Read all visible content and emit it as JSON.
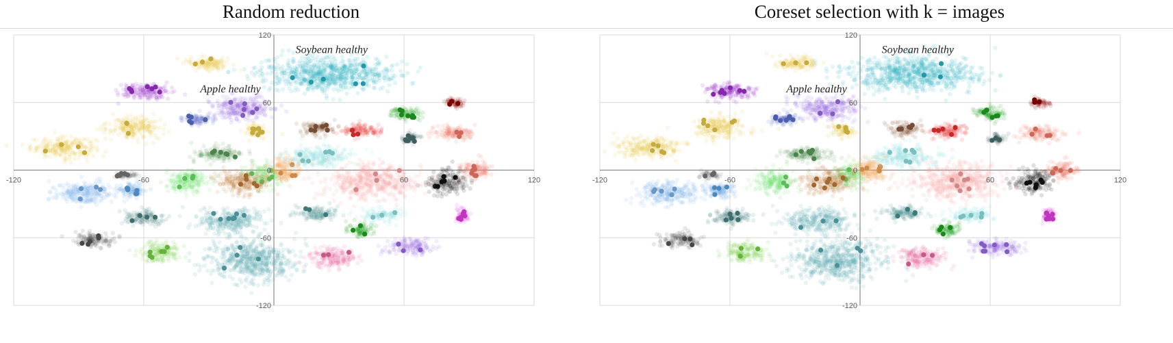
{
  "chart_data": [
    {
      "type": "scatter",
      "title": "Random reduction",
      "xlim": [
        -120,
        120
      ],
      "ylim": [
        -120,
        120
      ],
      "grid": true,
      "axes_through_origin": true,
      "x_ticks": [
        -120,
        -60,
        0,
        60,
        120
      ],
      "y_ticks": [
        -120,
        -60,
        0,
        60,
        120
      ],
      "annotations": [
        {
          "text": "Soybean healthy",
          "x": 10,
          "y": 104
        },
        {
          "text": "Apple healthy",
          "x": -34,
          "y": 69
        }
      ],
      "clusters": [
        {
          "color": "#e8c84a",
          "cx": -97,
          "cy": 20,
          "rx": 15,
          "ry": 9
        },
        {
          "color": "#e8c84a",
          "cx": -65,
          "cy": 38,
          "rx": 12,
          "ry": 10
        },
        {
          "color": "#e8c84a",
          "cx": -30,
          "cy": 95,
          "rx": 10,
          "ry": 6
        },
        {
          "color": "#e8c84a",
          "cx": -8,
          "cy": 35,
          "rx": 5,
          "ry": 6
        },
        {
          "color": "#9b30c9",
          "cx": -60,
          "cy": 70,
          "rx": 12,
          "ry": 7
        },
        {
          "color": "#9b6be0",
          "cx": -15,
          "cy": 55,
          "rx": 15,
          "ry": 10
        },
        {
          "color": "#5b6ec8",
          "cx": -35,
          "cy": 45,
          "rx": 7,
          "ry": 5
        },
        {
          "color": "#2bb3c4",
          "cx": 25,
          "cy": 85,
          "rx": 30,
          "ry": 15
        },
        {
          "color": "#5a9a5a",
          "cx": -25,
          "cy": 14,
          "rx": 12,
          "ry": 6
        },
        {
          "color": "#7fb0e8",
          "cx": -88,
          "cy": -20,
          "rx": 14,
          "ry": 10
        },
        {
          "color": "#5ea0e0",
          "cx": -65,
          "cy": -18,
          "rx": 6,
          "ry": 6
        },
        {
          "color": "#777777",
          "cx": -69,
          "cy": -4,
          "rx": 5,
          "ry": 3
        },
        {
          "color": "#6be06b",
          "cx": -40,
          "cy": -10,
          "rx": 10,
          "ry": 10
        },
        {
          "color": "#6be06b",
          "cx": -5,
          "cy": -5,
          "rx": 8,
          "ry": 10
        },
        {
          "color": "#c07a3a",
          "cx": -15,
          "cy": -10,
          "rx": 12,
          "ry": 10
        },
        {
          "color": "#f5a255",
          "cx": 5,
          "cy": 0,
          "rx": 8,
          "ry": 10
        },
        {
          "color": "#4a8080",
          "cx": -60,
          "cy": -42,
          "rx": 10,
          "ry": 6
        },
        {
          "color": "#555555",
          "cx": -83,
          "cy": -62,
          "rx": 9,
          "ry": 7
        },
        {
          "color": "#7ad04a",
          "cx": -53,
          "cy": -73,
          "rx": 9,
          "ry": 9
        },
        {
          "color": "#5aa8b0",
          "cx": -20,
          "cy": -45,
          "rx": 15,
          "ry": 11
        },
        {
          "color": "#5aa8b0",
          "cx": -10,
          "cy": -80,
          "rx": 20,
          "ry": 18
        },
        {
          "color": "#8a5a40",
          "cx": 20,
          "cy": 37,
          "rx": 8,
          "ry": 6
        },
        {
          "color": "#e83030",
          "cx": 40,
          "cy": 35,
          "rx": 9,
          "ry": 6
        },
        {
          "color": "#1fa01f",
          "cx": 60,
          "cy": 50,
          "rx": 7,
          "ry": 6
        },
        {
          "color": "#8b0000",
          "cx": 83,
          "cy": 60,
          "rx": 4,
          "ry": 4
        },
        {
          "color": "#f07a6a",
          "cx": 83,
          "cy": 33,
          "rx": 10,
          "ry": 6
        },
        {
          "color": "#4a7070",
          "cx": 63,
          "cy": 28,
          "rx": 4,
          "ry": 4
        },
        {
          "color": "#111111",
          "cx": 80,
          "cy": -10,
          "rx": 9,
          "ry": 10
        },
        {
          "color": "#f07a6a",
          "cx": 93,
          "cy": 0,
          "rx": 7,
          "ry": 8
        },
        {
          "color": "#90e0e0",
          "cx": 20,
          "cy": 12,
          "rx": 15,
          "ry": 10
        },
        {
          "color": "#f5a0a0",
          "cx": 45,
          "cy": -10,
          "rx": 20,
          "ry": 15
        },
        {
          "color": "#4a9090",
          "cx": 20,
          "cy": -38,
          "rx": 10,
          "ry": 6
        },
        {
          "color": "#1fa01f",
          "cx": 40,
          "cy": -53,
          "rx": 6,
          "ry": 6
        },
        {
          "color": "#e86aa0",
          "cx": 28,
          "cy": -78,
          "rx": 11,
          "ry": 9
        },
        {
          "color": "#9b6be0",
          "cx": 63,
          "cy": -68,
          "rx": 11,
          "ry": 7
        },
        {
          "color": "#e040e0",
          "cx": 87,
          "cy": -40,
          "rx": 3,
          "ry": 6
        },
        {
          "color": "#90e0e0",
          "cx": 50,
          "cy": -40,
          "rx": 10,
          "ry": 6
        }
      ]
    },
    {
      "type": "scatter",
      "title": "Coreset selection with k = images",
      "xlim": [
        -120,
        120
      ],
      "ylim": [
        -120,
        120
      ],
      "grid": true,
      "axes_through_origin": true,
      "x_ticks": [
        -120,
        -60,
        0,
        60,
        120
      ],
      "y_ticks": [
        -120,
        -60,
        0,
        60,
        120
      ],
      "annotations": [
        {
          "text": "Soybean healthy",
          "x": 10,
          "y": 104
        },
        {
          "text": "Apple healthy",
          "x": -34,
          "y": 69
        }
      ],
      "clusters": [
        {
          "color": "#e8c84a",
          "cx": -97,
          "cy": 20,
          "rx": 15,
          "ry": 9
        },
        {
          "color": "#e8c84a",
          "cx": -65,
          "cy": 38,
          "rx": 12,
          "ry": 10
        },
        {
          "color": "#e8c84a",
          "cx": -30,
          "cy": 95,
          "rx": 10,
          "ry": 6
        },
        {
          "color": "#e8c84a",
          "cx": -8,
          "cy": 35,
          "rx": 5,
          "ry": 6
        },
        {
          "color": "#9b30c9",
          "cx": -60,
          "cy": 70,
          "rx": 12,
          "ry": 7
        },
        {
          "color": "#9b6be0",
          "cx": -15,
          "cy": 55,
          "rx": 15,
          "ry": 10
        },
        {
          "color": "#5b6ec8",
          "cx": -35,
          "cy": 45,
          "rx": 7,
          "ry": 5
        },
        {
          "color": "#2bb3c4",
          "cx": 25,
          "cy": 85,
          "rx": 30,
          "ry": 15
        },
        {
          "color": "#5a9a5a",
          "cx": -25,
          "cy": 14,
          "rx": 12,
          "ry": 6
        },
        {
          "color": "#7fb0e8",
          "cx": -88,
          "cy": -20,
          "rx": 14,
          "ry": 10
        },
        {
          "color": "#5ea0e0",
          "cx": -65,
          "cy": -18,
          "rx": 6,
          "ry": 6
        },
        {
          "color": "#777777",
          "cx": -69,
          "cy": -4,
          "rx": 5,
          "ry": 3
        },
        {
          "color": "#6be06b",
          "cx": -40,
          "cy": -10,
          "rx": 10,
          "ry": 10
        },
        {
          "color": "#6be06b",
          "cx": -5,
          "cy": -5,
          "rx": 8,
          "ry": 10
        },
        {
          "color": "#c07a3a",
          "cx": -15,
          "cy": -10,
          "rx": 12,
          "ry": 10
        },
        {
          "color": "#f5a255",
          "cx": 5,
          "cy": 0,
          "rx": 8,
          "ry": 10
        },
        {
          "color": "#4a8080",
          "cx": -60,
          "cy": -42,
          "rx": 10,
          "ry": 6
        },
        {
          "color": "#555555",
          "cx": -83,
          "cy": -62,
          "rx": 9,
          "ry": 7
        },
        {
          "color": "#7ad04a",
          "cx": -53,
          "cy": -73,
          "rx": 9,
          "ry": 9
        },
        {
          "color": "#5aa8b0",
          "cx": -20,
          "cy": -45,
          "rx": 15,
          "ry": 11
        },
        {
          "color": "#5aa8b0",
          "cx": -10,
          "cy": -80,
          "rx": 20,
          "ry": 18
        },
        {
          "color": "#8a5a40",
          "cx": 20,
          "cy": 37,
          "rx": 8,
          "ry": 6
        },
        {
          "color": "#e83030",
          "cx": 40,
          "cy": 35,
          "rx": 9,
          "ry": 6
        },
        {
          "color": "#1fa01f",
          "cx": 60,
          "cy": 50,
          "rx": 7,
          "ry": 6
        },
        {
          "color": "#8b0000",
          "cx": 83,
          "cy": 60,
          "rx": 4,
          "ry": 4
        },
        {
          "color": "#f07a6a",
          "cx": 83,
          "cy": 33,
          "rx": 10,
          "ry": 6
        },
        {
          "color": "#4a7070",
          "cx": 63,
          "cy": 28,
          "rx": 4,
          "ry": 4
        },
        {
          "color": "#111111",
          "cx": 80,
          "cy": -10,
          "rx": 9,
          "ry": 10
        },
        {
          "color": "#f07a6a",
          "cx": 93,
          "cy": 0,
          "rx": 7,
          "ry": 8
        },
        {
          "color": "#90e0e0",
          "cx": 20,
          "cy": 12,
          "rx": 15,
          "ry": 10
        },
        {
          "color": "#f5a0a0",
          "cx": 45,
          "cy": -10,
          "rx": 20,
          "ry": 15
        },
        {
          "color": "#4a9090",
          "cx": 20,
          "cy": -38,
          "rx": 10,
          "ry": 6
        },
        {
          "color": "#1fa01f",
          "cx": 40,
          "cy": -53,
          "rx": 6,
          "ry": 6
        },
        {
          "color": "#e86aa0",
          "cx": 28,
          "cy": -78,
          "rx": 11,
          "ry": 9
        },
        {
          "color": "#9b6be0",
          "cx": 63,
          "cy": -68,
          "rx": 11,
          "ry": 7
        },
        {
          "color": "#e040e0",
          "cx": 87,
          "cy": -40,
          "rx": 3,
          "ry": 6
        },
        {
          "color": "#90e0e0",
          "cx": 50,
          "cy": -40,
          "rx": 10,
          "ry": 6
        }
      ]
    }
  ]
}
